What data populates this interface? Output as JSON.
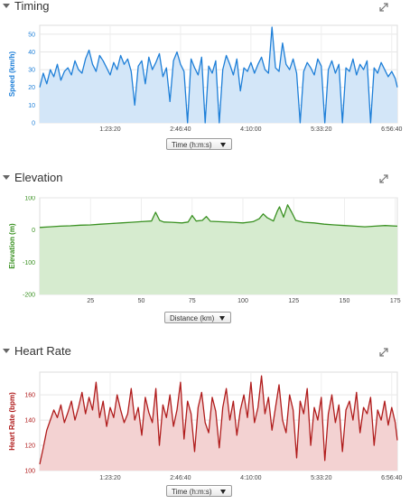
{
  "panels": {
    "timing": {
      "title": "Timing",
      "selector": "Time (h:m:s)",
      "icons": {
        "collapse": "triangle-down-icon",
        "expand": "expand-arrows-icon"
      }
    },
    "elevation": {
      "title": "Elevation",
      "selector": "Distance (km)",
      "icons": {
        "collapse": "triangle-down-icon",
        "expand": "expand-arrows-icon"
      }
    },
    "heartrate": {
      "title": "Heart Rate",
      "selector": "Time (h:m:s)",
      "icons": {
        "collapse": "triangle-down-icon",
        "expand": "expand-arrows-icon"
      }
    }
  },
  "chart_data": [
    {
      "type": "area",
      "ylabel": "Speed (km/h)",
      "ylim": [
        0,
        55
      ],
      "yticks": [
        0,
        10,
        20,
        30,
        40,
        50
      ],
      "xlim": [
        0,
        25400
      ],
      "xticks": [
        5000,
        10000,
        15000,
        20000,
        25000
      ],
      "xtick_labels": [
        "1:23:20",
        "2:46:40",
        "4:10:00",
        "5:33:20",
        "6:56:40"
      ],
      "color": "#1e7fd8",
      "fill": "#d3e6f8",
      "x": [
        0,
        250,
        500,
        750,
        1000,
        1250,
        1500,
        1750,
        2000,
        2250,
        2500,
        2750,
        3000,
        3250,
        3500,
        3750,
        4000,
        4250,
        4500,
        4750,
        5000,
        5250,
        5500,
        5750,
        6000,
        6250,
        6500,
        6750,
        7000,
        7250,
        7500,
        7750,
        8000,
        8250,
        8500,
        8750,
        9000,
        9250,
        9500,
        9750,
        10000,
        10250,
        10500,
        10750,
        11000,
        11250,
        11500,
        11750,
        12000,
        12250,
        12500,
        12750,
        13000,
        13250,
        13500,
        13750,
        14000,
        14250,
        14500,
        14750,
        15000,
        15250,
        15500,
        15750,
        16000,
        16250,
        16500,
        16750,
        17000,
        17250,
        17500,
        17750,
        18000,
        18250,
        18500,
        18750,
        19000,
        19250,
        19500,
        19750,
        20000,
        20250,
        20500,
        20750,
        21000,
        21250,
        21500,
        21750,
        22000,
        22250,
        22500,
        22750,
        23000,
        23250,
        23500,
        23750,
        24000,
        24250,
        24500,
        24750,
        25000,
        25250,
        25400
      ],
      "y": [
        20,
        28,
        22,
        30,
        26,
        33,
        24,
        29,
        31,
        27,
        35,
        30,
        28,
        36,
        41,
        33,
        29,
        38,
        35,
        31,
        27,
        34,
        30,
        38,
        33,
        36,
        29,
        10,
        32,
        35,
        22,
        37,
        30,
        34,
        39,
        26,
        31,
        12,
        35,
        40,
        33,
        29,
        0,
        36,
        31,
        27,
        37,
        0,
        32,
        28,
        35,
        0,
        30,
        38,
        33,
        27,
        36,
        18,
        31,
        29,
        34,
        28,
        33,
        37,
        30,
        28,
        54,
        31,
        29,
        45,
        33,
        30,
        36,
        28,
        0,
        29,
        34,
        31,
        27,
        36,
        32,
        0,
        30,
        35,
        28,
        33,
        0,
        31,
        29,
        36,
        27,
        33,
        30,
        35,
        0,
        31,
        28,
        34,
        30,
        26,
        29,
        25,
        20
      ]
    },
    {
      "type": "area",
      "ylabel": "Elevation (m)",
      "ylim": [
        -200,
        100
      ],
      "yticks": [
        -200,
        -100,
        0,
        100
      ],
      "xlim": [
        0,
        176
      ],
      "xticks": [
        25,
        50,
        75,
        100,
        125,
        150,
        175
      ],
      "xtick_labels": [
        "25",
        "50",
        "75",
        "100",
        "125",
        "150",
        "175"
      ],
      "color": "#3a9122",
      "fill": "#d6ebcf",
      "x": [
        0,
        5,
        10,
        15,
        20,
        25,
        30,
        35,
        40,
        45,
        50,
        55,
        57,
        59,
        61,
        65,
        70,
        73,
        75,
        77,
        80,
        82,
        84,
        88,
        95,
        100,
        105,
        108,
        110,
        112,
        115,
        117,
        118,
        120,
        122,
        124,
        126,
        130,
        135,
        140,
        145,
        150,
        155,
        160,
        165,
        170,
        176
      ],
      "y": [
        8,
        10,
        12,
        13,
        15,
        16,
        18,
        20,
        22,
        24,
        26,
        28,
        55,
        30,
        25,
        24,
        22,
        25,
        45,
        28,
        30,
        42,
        27,
        26,
        24,
        22,
        26,
        35,
        50,
        38,
        28,
        60,
        72,
        40,
        78,
        55,
        30,
        24,
        22,
        18,
        16,
        14,
        12,
        10,
        12,
        14,
        12
      ]
    },
    {
      "type": "area",
      "ylabel": "Heart Rate (bpm)",
      "ylim": [
        100,
        178
      ],
      "yticks": [
        100,
        120,
        140,
        160
      ],
      "xlim": [
        0,
        25400
      ],
      "xticks": [
        5000,
        10000,
        15000,
        20000,
        25000
      ],
      "xtick_labels": [
        "1:23:20",
        "2:46:40",
        "4:10:00",
        "5:33:20",
        "6:56:40"
      ],
      "color": "#b01c1c",
      "fill": "#f3d2d2",
      "x": [
        0,
        250,
        500,
        750,
        1000,
        1250,
        1500,
        1750,
        2000,
        2250,
        2500,
        2750,
        3000,
        3250,
        3500,
        3750,
        4000,
        4250,
        4500,
        4750,
        5000,
        5250,
        5500,
        5750,
        6000,
        6250,
        6500,
        6750,
        7000,
        7250,
        7500,
        7750,
        8000,
        8250,
        8500,
        8750,
        9000,
        9250,
        9500,
        9750,
        10000,
        10250,
        10500,
        10750,
        11000,
        11250,
        11500,
        11750,
        12000,
        12250,
        12500,
        12750,
        13000,
        13250,
        13500,
        13750,
        14000,
        14250,
        14500,
        14750,
        15000,
        15250,
        15500,
        15750,
        16000,
        16250,
        16500,
        16750,
        17000,
        17250,
        17500,
        17750,
        18000,
        18250,
        18500,
        18750,
        19000,
        19250,
        19500,
        19750,
        20000,
        20250,
        20500,
        20750,
        21000,
        21250,
        21500,
        21750,
        22000,
        22250,
        22500,
        22750,
        23000,
        23250,
        23500,
        23750,
        24000,
        24250,
        24500,
        24750,
        25000,
        25250,
        25400
      ],
      "y": [
        105,
        118,
        132,
        140,
        148,
        142,
        152,
        138,
        146,
        155,
        140,
        150,
        162,
        145,
        158,
        148,
        170,
        142,
        155,
        135,
        150,
        142,
        160,
        148,
        138,
        145,
        165,
        140,
        150,
        128,
        158,
        146,
        138,
        165,
        120,
        152,
        142,
        160,
        135,
        148,
        170,
        125,
        155,
        145,
        115,
        150,
        162,
        138,
        130,
        158,
        147,
        118,
        150,
        165,
        140,
        155,
        128,
        148,
        160,
        142,
        170,
        138,
        150,
        175,
        145,
        158,
        132,
        150,
        168,
        140,
        130,
        160,
        148,
        110,
        155,
        145,
        165,
        120,
        150,
        140,
        158,
        108,
        145,
        160,
        138,
        152,
        115,
        148,
        155,
        140,
        162,
        130,
        150,
        145,
        158,
        120,
        148,
        140,
        155,
        136,
        150,
        138,
        124
      ]
    }
  ]
}
